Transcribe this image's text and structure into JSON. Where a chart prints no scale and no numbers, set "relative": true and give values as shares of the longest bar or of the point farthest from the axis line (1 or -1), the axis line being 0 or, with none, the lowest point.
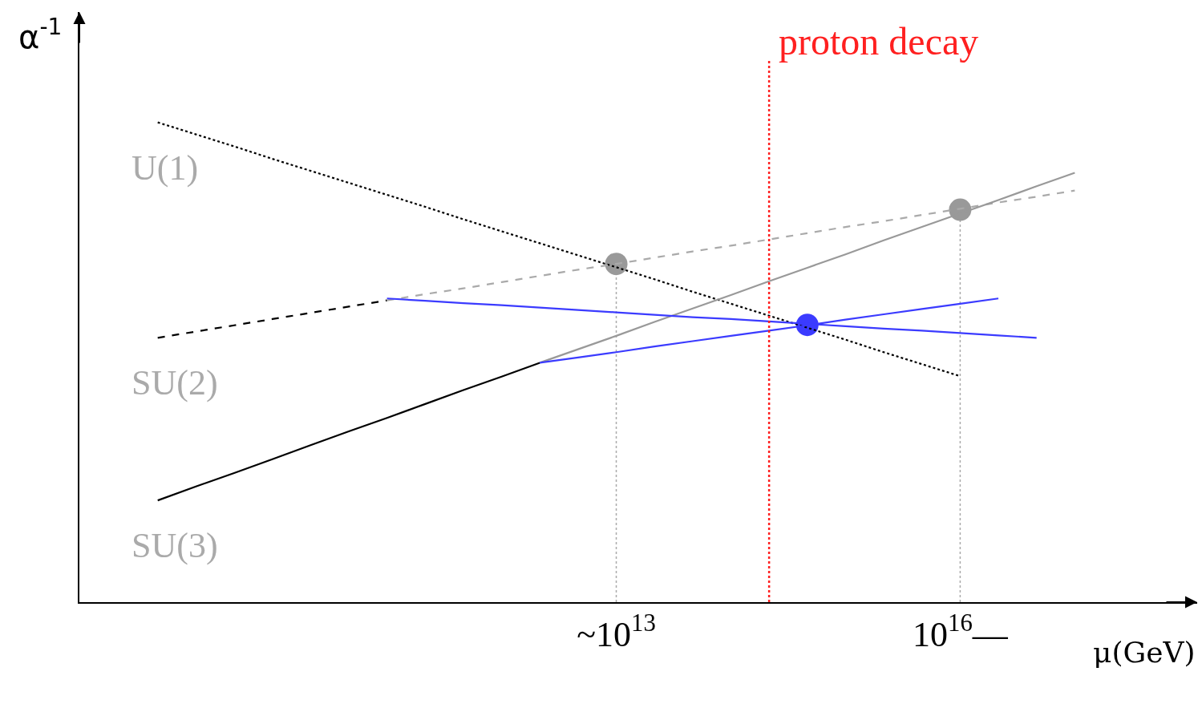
{
  "chart_data": {
    "type": "line",
    "relative": true,
    "xlabel": "μ(GeV)",
    "ylabel": "α$^{-1}$",
    "categories": [
      null,
      null,
      null,
      null,
      null,
      null,
      null,
      null,
      null,
      null,
      null,
      null,
      null,
      null,
      "~10$^{13}$",
      null,
      null,
      null,
      null,
      null,
      null,
      null,
      null,
      "10$^{16}$—",
      null,
      null,
      null,
      null,
      null,
      null
    ],
    "grid": "x",
    "legend": false,
    "series": [
      {
        "name": "U(1)",
        "color": "#000000",
        "line_style": "dotted",
        "values": [
          null,
          null,
          1.0,
          0.975,
          0.95,
          0.924,
          0.899,
          0.874,
          0.849,
          0.824,
          0.798,
          0.773,
          0.748,
          0.723,
          0.698,
          0.673,
          0.647,
          0.622,
          0.597,
          0.572,
          0.547,
          0.521,
          0.496,
          0.471,
          null,
          null,
          null,
          null,
          null,
          null
        ]
      },
      {
        "name": "SU(2)",
        "color": "#000000",
        "line_style": "dashed",
        "values": [
          null,
          null,
          0.551,
          0.564,
          0.577,
          0.59,
          0.603,
          0.616,
          0.629,
          null,
          null,
          null,
          null,
          null,
          null,
          null,
          null,
          null,
          null,
          null,
          null,
          null,
          null,
          null,
          null,
          null,
          null,
          null,
          null,
          null
        ]
      },
      {
        "color": "#aaaaaa",
        "line_style": "dashed",
        "values": [
          null,
          null,
          null,
          null,
          null,
          null,
          null,
          null,
          0.629,
          0.642,
          0.654,
          0.667,
          0.68,
          0.693,
          0.705,
          0.718,
          0.731,
          0.743,
          0.756,
          0.769,
          0.782,
          0.794,
          0.807,
          0.82,
          0.833,
          0.845,
          0.858,
          null,
          null,
          null
        ]
      },
      {
        "name": "SU(3)",
        "color": "#000000",
        "line_style": "solid",
        "values": [
          null,
          null,
          0.212,
          0.241,
          0.269,
          0.298,
          0.327,
          0.356,
          0.384,
          0.413,
          0.442,
          0.47,
          0.499,
          null,
          null,
          null,
          null,
          null,
          null,
          null,
          null,
          null,
          null,
          null,
          null,
          null,
          null,
          null,
          null,
          null
        ]
      },
      {
        "color": "#999999",
        "line_style": "solid",
        "values": [
          null,
          null,
          null,
          null,
          null,
          null,
          null,
          null,
          null,
          null,
          null,
          null,
          0.499,
          0.527,
          0.555,
          0.584,
          0.612,
          0.64,
          0.669,
          0.697,
          0.725,
          0.754,
          0.782,
          0.81,
          0.838,
          0.867,
          0.895,
          null,
          null,
          null
        ]
      },
      {
        "color": "#3b3bff",
        "line_style": "solid",
        "values": [
          null,
          null,
          null,
          null,
          null,
          null,
          null,
          null,
          0.633,
          0.628,
          0.623,
          0.619,
          0.614,
          0.609,
          0.604,
          0.599,
          0.594,
          0.59,
          0.585,
          0.58,
          0.575,
          0.57,
          0.566,
          0.561,
          0.556,
          0.551,
          null,
          null,
          null,
          null
        ]
      },
      {
        "color": "#3b3bff",
        "line_style": "solid",
        "values": [
          null,
          null,
          null,
          null,
          null,
          null,
          null,
          null,
          null,
          null,
          null,
          null,
          0.499,
          0.51,
          0.521,
          0.533,
          0.544,
          0.555,
          0.566,
          0.577,
          0.589,
          0.6,
          0.611,
          0.622,
          0.633,
          null,
          null,
          null,
          null,
          null
        ]
      },
      {
        "type": "scatter",
        "marker": "circle",
        "color": "#999999",
        "values": [
          null,
          null,
          null,
          null,
          null,
          null,
          null,
          null,
          null,
          null,
          null,
          null,
          null,
          null,
          0.705,
          null,
          null,
          null,
          null,
          null,
          null,
          null,
          null,
          0.818,
          null,
          null,
          null,
          null,
          null,
          null
        ]
      },
      {
        "type": "scatter",
        "marker": "circle",
        "color": "#3b3bff",
        "values": [
          null,
          null,
          null,
          null,
          null,
          null,
          null,
          null,
          null,
          null,
          null,
          null,
          null,
          null,
          null,
          null,
          null,
          null,
          null,
          0.578,
          null,
          null,
          null,
          null,
          null,
          null,
          null,
          null,
          null,
          null
        ]
      }
    ],
    "annotations": [
      "proton decay"
    ]
  }
}
